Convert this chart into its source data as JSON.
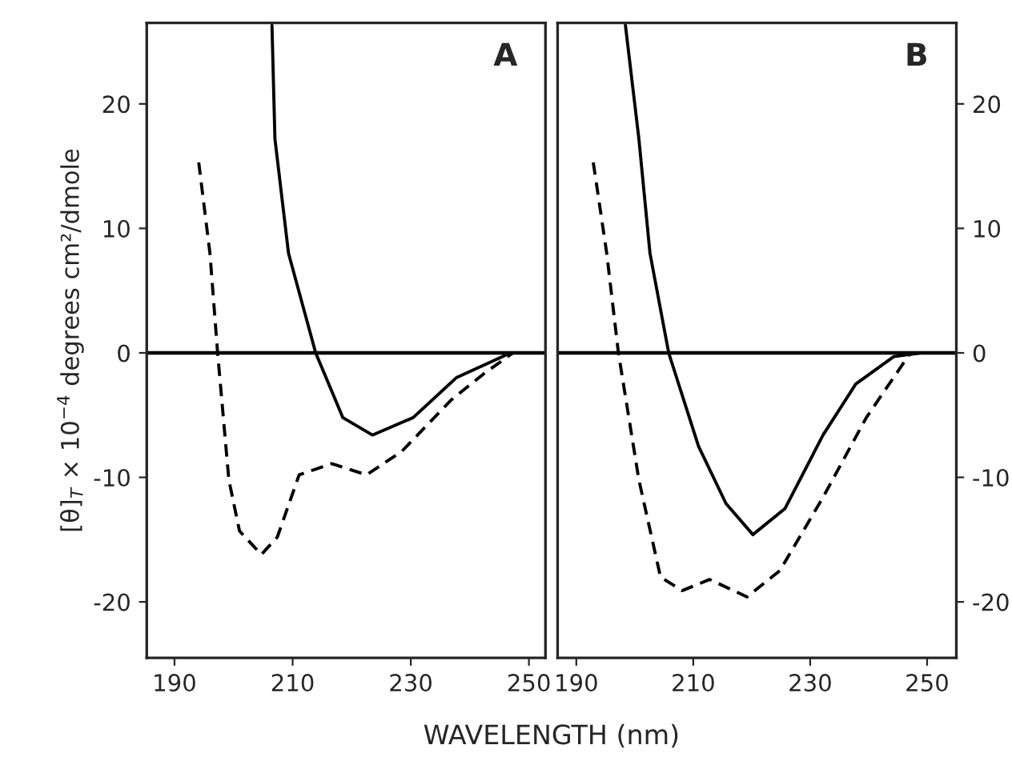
{
  "chart_data": [
    {
      "type": "line",
      "title": "A",
      "xlabel": "WAVELENGTH (nm)",
      "ylabel": "[θ]$_{T}$ × 10$^{−4}$ degrees cm²/dmole",
      "xlim": [
        185.3,
        252.8
      ],
      "ylim": [
        -24.5,
        26.5
      ],
      "xticks": [
        190,
        210,
        230,
        250
      ],
      "yticks": [
        -20,
        -10,
        0,
        10,
        20
      ],
      "grid": false,
      "legend": false,
      "ref_lines": [
        {
          "axis": "y",
          "value": 0,
          "color": "#000000"
        }
      ],
      "series": [
        {
          "color": "#000000",
          "line_style": "solid",
          "x": [
            206.5,
            207.0,
            209.3,
            213.9,
            218.5,
            223.5,
            230.4,
            237.7,
            246.9
          ],
          "values": [
            26.3,
            17.2,
            8.0,
            0,
            -5.2,
            -6.6,
            -5.2,
            -2.0,
            0
          ]
        },
        {
          "color": "#000000",
          "line_style": "dashed",
          "x": [
            194.1,
            196.0,
            197.3,
            199.2,
            201.0,
            204.7,
            207.4,
            211.1,
            216.6,
            222.5,
            228.5,
            236.8,
            242.3,
            247.3
          ],
          "values": [
            15.3,
            8.0,
            0,
            -10.2,
            -14.3,
            -16.2,
            -14.8,
            -9.8,
            -8.9,
            -9.8,
            -7.9,
            -3.8,
            -1.7,
            0
          ]
        }
      ]
    },
    {
      "type": "line",
      "title": "B",
      "xlim": [
        186.8,
        255
      ],
      "ylim": [
        -24.5,
        26.5
      ],
      "xticks": [
        190,
        210,
        230,
        250
      ],
      "yticks": [
        -20,
        -10,
        0,
        10,
        20
      ],
      "grid": false,
      "legend": false,
      "ref_lines": [
        {
          "axis": "y",
          "value": 0,
          "color": "#000000"
        }
      ],
      "series": [
        {
          "color": "#000000",
          "line_style": "solid",
          "x": [
            198.4,
            200.7,
            202.6,
            205.8,
            210.9,
            215.6,
            220.2,
            225.7,
            232.2,
            237.8,
            244.3,
            248.9
          ],
          "values": [
            26.3,
            17.2,
            8.0,
            0,
            -7.5,
            -12.1,
            -14.6,
            -12.5,
            -6.6,
            -2.5,
            -0.3,
            0
          ]
        },
        {
          "color": "#000000",
          "line_style": "dashed",
          "x": [
            192.9,
            195.2,
            197.2,
            200.7,
            204.4,
            208.1,
            212.8,
            219.2,
            224.8,
            232.2,
            239.6,
            247.0,
            248.4
          ],
          "values": [
            15.3,
            8.0,
            0,
            -10.2,
            -18.0,
            -19.1,
            -18.2,
            -19.6,
            -17.5,
            -11.6,
            -5.2,
            -0.1,
            0
          ]
        }
      ]
    }
  ]
}
